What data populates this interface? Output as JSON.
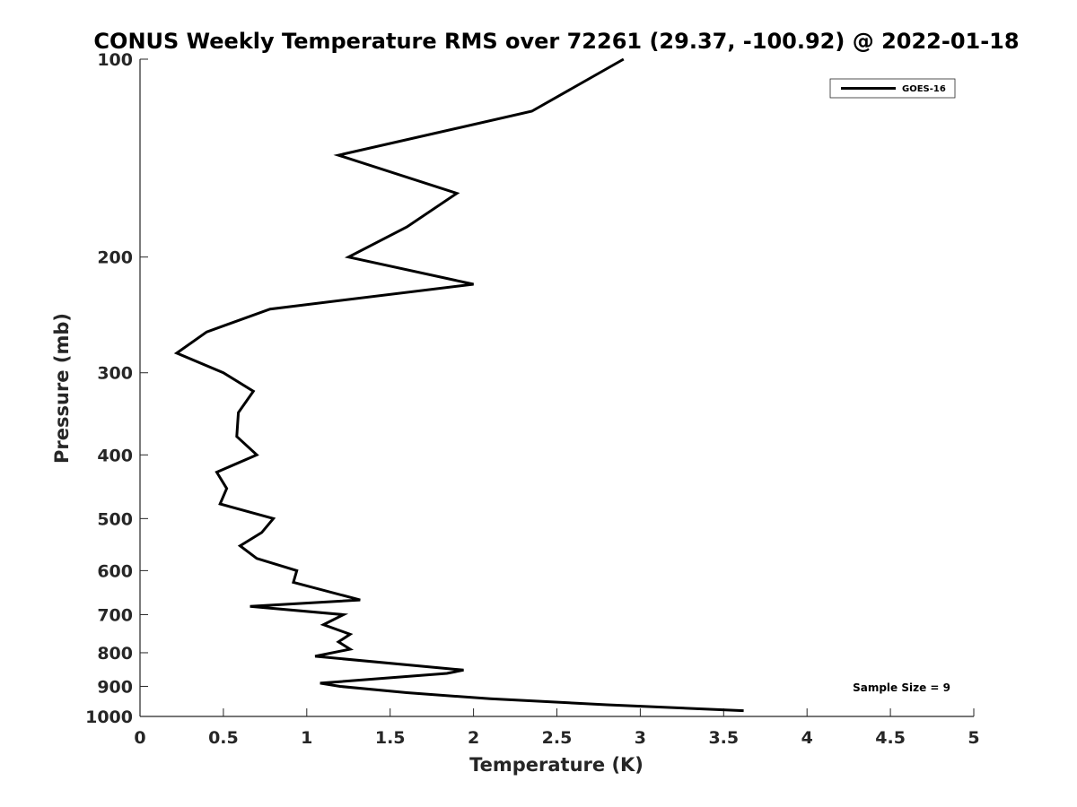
{
  "chart_data": {
    "type": "line",
    "title": "CONUS Weekly Temperature RMS over 72261 (29.37, -100.92) @ 2022-01-18",
    "xlabel": "Temperature (K)",
    "ylabel": "Pressure (mb)",
    "xlim": [
      0,
      5
    ],
    "ylim": [
      100,
      1000
    ],
    "yscale": "log",
    "yreversed": true,
    "grid": false,
    "legend_position": "top-right",
    "x_ticks": [
      0,
      0.5,
      1,
      1.5,
      2,
      2.5,
      3,
      3.5,
      4,
      4.5,
      5
    ],
    "x_tick_labels": [
      "0",
      "0.5",
      "1",
      "1.5",
      "2",
      "2.5",
      "3",
      "3.5",
      "4",
      "4.5",
      "5"
    ],
    "y_ticks": [
      100,
      200,
      300,
      400,
      500,
      600,
      700,
      800,
      900,
      1000
    ],
    "y_tick_labels": [
      "100",
      "200",
      "300",
      "400",
      "500",
      "600",
      "700",
      "800",
      "900",
      "1000"
    ],
    "series": [
      {
        "name": "GOES-16",
        "color": "#000000",
        "points": [
          {
            "x": 2.9,
            "p": 100
          },
          {
            "x": 2.35,
            "p": 120
          },
          {
            "x": 1.19,
            "p": 140
          },
          {
            "x": 1.9,
            "p": 160
          },
          {
            "x": 1.6,
            "p": 180
          },
          {
            "x": 1.25,
            "p": 200
          },
          {
            "x": 2.0,
            "p": 220
          },
          {
            "x": 0.78,
            "p": 240
          },
          {
            "x": 0.4,
            "p": 260
          },
          {
            "x": 0.22,
            "p": 280
          },
          {
            "x": 0.5,
            "p": 300
          },
          {
            "x": 0.68,
            "p": 320
          },
          {
            "x": 0.59,
            "p": 345
          },
          {
            "x": 0.58,
            "p": 375
          },
          {
            "x": 0.7,
            "p": 400
          },
          {
            "x": 0.46,
            "p": 425
          },
          {
            "x": 0.52,
            "p": 450
          },
          {
            "x": 0.48,
            "p": 475
          },
          {
            "x": 0.8,
            "p": 500
          },
          {
            "x": 0.73,
            "p": 525
          },
          {
            "x": 0.6,
            "p": 550
          },
          {
            "x": 0.7,
            "p": 575
          },
          {
            "x": 0.94,
            "p": 600
          },
          {
            "x": 0.92,
            "p": 625
          },
          {
            "x": 1.32,
            "p": 665
          },
          {
            "x": 0.66,
            "p": 680
          },
          {
            "x": 1.22,
            "p": 700
          },
          {
            "x": 1.1,
            "p": 725
          },
          {
            "x": 1.26,
            "p": 750
          },
          {
            "x": 1.19,
            "p": 770
          },
          {
            "x": 1.26,
            "p": 790
          },
          {
            "x": 1.05,
            "p": 810
          },
          {
            "x": 1.94,
            "p": 850
          },
          {
            "x": 1.84,
            "p": 860
          },
          {
            "x": 1.08,
            "p": 890
          },
          {
            "x": 1.2,
            "p": 900
          },
          {
            "x": 1.6,
            "p": 920
          },
          {
            "x": 2.1,
            "p": 940
          },
          {
            "x": 2.8,
            "p": 960
          },
          {
            "x": 3.62,
            "p": 980
          }
        ]
      }
    ],
    "annotations": [
      {
        "text": "Sample Size = 9"
      }
    ]
  }
}
